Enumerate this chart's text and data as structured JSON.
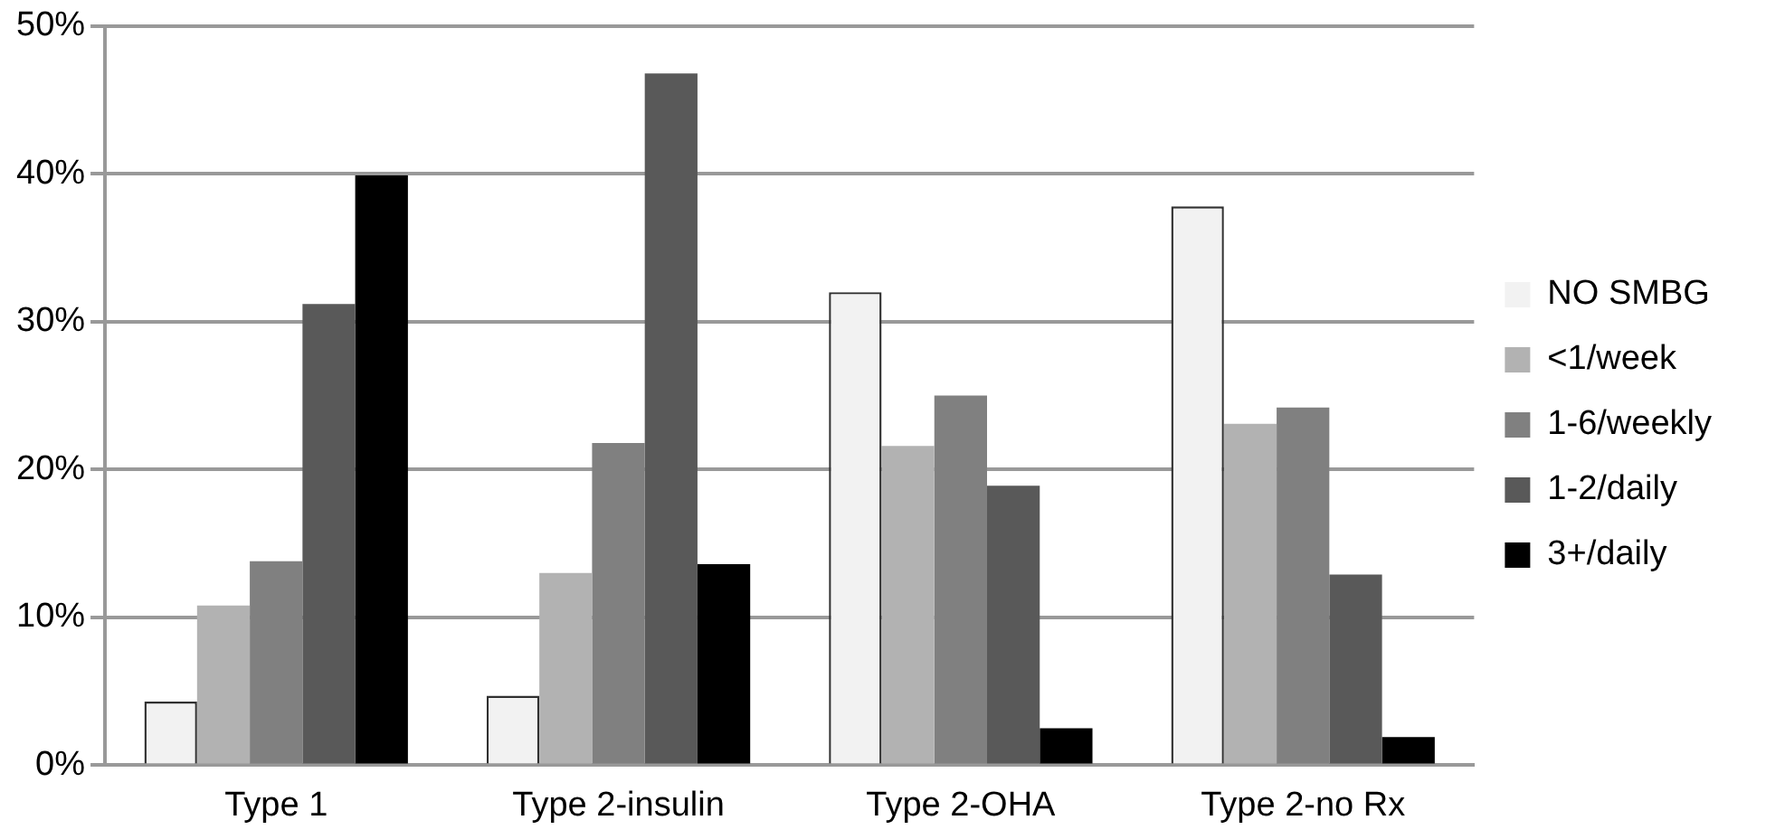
{
  "chart_data": {
    "type": "bar",
    "categories": [
      "Type 1",
      "Type 2-insulin",
      "Type 2-OHA",
      "Type 2-no Rx"
    ],
    "series": [
      {
        "name": "NO SMBG",
        "color": "#f2f2f2",
        "values": [
          4.3,
          4.7,
          32.0,
          37.8
        ]
      },
      {
        "name": "<1/week",
        "color": "#b2b2b2",
        "values": [
          10.8,
          13.0,
          21.6,
          23.1
        ]
      },
      {
        "name": "1-6/weekly",
        "color": "#808080",
        "values": [
          13.8,
          21.8,
          25.0,
          24.2
        ]
      },
      {
        "name": "1-2/daily",
        "color": "#595959",
        "values": [
          31.2,
          46.8,
          18.9,
          12.9
        ]
      },
      {
        "name": "3+/daily",
        "color": "#000000",
        "values": [
          39.9,
          13.6,
          2.5,
          1.9
        ]
      }
    ],
    "ylim": [
      0,
      50
    ],
    "yticks": [
      {
        "value": 0,
        "label": "0%"
      },
      {
        "value": 10,
        "label": "10%"
      },
      {
        "value": 20,
        "label": "20%"
      },
      {
        "value": 30,
        "label": "30%"
      },
      {
        "value": 40,
        "label": "40%"
      },
      {
        "value": 50,
        "label": "50%"
      }
    ],
    "grid": "y",
    "legend": "right"
  }
}
